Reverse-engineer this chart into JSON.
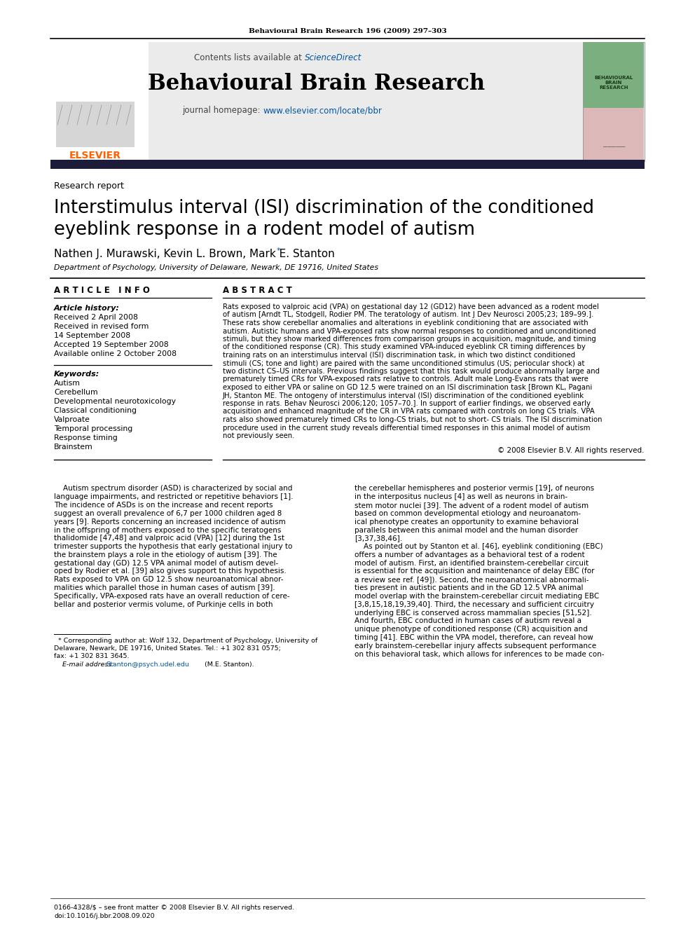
{
  "journal_ref": "Behavioural Brain Research 196 (2009) 297–303",
  "contents_text": "Contents lists available at ",
  "sciencedirect_text": "ScienceDirect",
  "journal_name": "Behavioural Brain Research",
  "homepage_text": "journal homepage: ",
  "homepage_url": "www.elsevier.com/locate/bbr",
  "section_label": "Research report",
  "article_title_line1": "Interstimulus interval (ISI) discrimination of the conditioned",
  "article_title_line2": "eyeblink response in a rodent model of autism",
  "authors": "Nathen J. Murawski, Kevin L. Brown, Mark E. Stanton",
  "affiliation": "Department of Psychology, University of Delaware, Newark, DE 19716, United States",
  "article_info_header": "A R T I C L E   I N F O",
  "abstract_header": "A B S T R A C T",
  "article_history_label": "Article history:",
  "history_lines": [
    "Received 2 April 2008",
    "Received in revised form",
    "14 September 2008",
    "Accepted 19 September 2008",
    "Available online 2 October 2008"
  ],
  "keywords_label": "Keywords:",
  "keywords": [
    "Autism",
    "Cerebellum",
    "Developmental neurotoxicology",
    "Classical conditioning",
    "Valproate",
    "Temporal processing",
    "Response timing",
    "Brainstem"
  ],
  "abstract_lines": [
    "Rats exposed to valproic acid (VPA) on gestational day 12 (GD12) have been advanced as a rodent model",
    "of autism [Arndt TL, Stodgell, Rodier PM. The teratology of autism. Int J Dev Neurosci 2005;23; 189–99.].",
    "These rats show cerebellar anomalies and alterations in eyeblink conditioning that are associated with",
    "autism. Autistic humans and VPA-exposed rats show normal responses to conditioned and unconditioned",
    "stimuli, but they show marked differences from comparison groups in acquisition, magnitude, and timing",
    "of the conditioned response (CR). This study examined VPA-induced eyeblink CR timing differences by",
    "training rats on an interstimulus interval (ISI) discrimination task, in which two distinct conditioned",
    "stimuli (CS; tone and light) are paired with the same unconditioned stimulus (US; periocular shock) at",
    "two distinct CS–US intervals. Previous findings suggest that this task would produce abnormally large and",
    "prematurely timed CRs for VPA-exposed rats relative to controls. Adult male Long-Evans rats that were",
    "exposed to either VPA or saline on GD 12.5 were trained on an ISI discrimination task [Brown KL, Pagani",
    "JH, Stanton ME. The ontogeny of interstimulus interval (ISI) discrimination of the conditioned eyeblink",
    "response in rats. Behav Neurosci 2006;120; 1057–70.]. In support of earlier findings, we observed early",
    "acquisition and enhanced magnitude of the CR in VPA rats compared with controls on long CS trials. VPA",
    "rats also showed prematurely timed CRs to long-CS trials, but not to short- CS trials. The ISI discrimination",
    "procedure used in the current study reveals differential timed responses in this animal model of autism",
    "not previously seen."
  ],
  "copyright": "© 2008 Elsevier B.V. All rights reserved.",
  "body_col1_lines": [
    "    Autism spectrum disorder (ASD) is characterized by social and",
    "language impairments, and restricted or repetitive behaviors [1].",
    "The incidence of ASDs is on the increase and recent reports",
    "suggest an overall prevalence of 6,7 per 1000 children aged 8",
    "years [9]. Reports concerning an increased incidence of autism",
    "in the offspring of mothers exposed to the specific teratogens",
    "thalidomide [47,48] and valproic acid (VPA) [12] during the 1st",
    "trimester supports the hypothesis that early gestational injury to",
    "the brainstem plays a role in the etiology of autism [39]. The",
    "gestational day (GD) 12.5 VPA animal model of autism devel-",
    "oped by Rodier et al. [39] also gives support to this hypothesis.",
    "Rats exposed to VPA on GD 12.5 show neuroanatomical abnor-",
    "malities which parallel those in human cases of autism [39].",
    "Specifically, VPA-exposed rats have an overall reduction of cere-",
    "bellar and posterior vermis volume, of Purkinje cells in both"
  ],
  "body_col2_lines": [
    "the cerebellar hemispheres and posterior vermis [19], of neurons",
    "in the interpositus nucleus [4] as well as neurons in brain-",
    "stem motor nuclei [39]. The advent of a rodent model of autism",
    "based on common developmental etiology and neuroanatom-",
    "ical phenotype creates an opportunity to examine behavioral",
    "parallels between this animal model and the human disorder",
    "[3,37,38,46].",
    "    As pointed out by Stanton et al. [46], eyeblink conditioning (EBC)",
    "offers a number of advantages as a behavioral test of a rodent",
    "model of autism. First, an identified brainstem-cerebellar circuit",
    "is essential for the acquisition and maintenance of delay EBC (for",
    "a review see ref. [49]). Second, the neuroanatomical abnormali-",
    "ties present in autistic patients and in the GD 12.5 VPA animal",
    "model overlap with the brainstem-cerebellar circuit mediating EBC",
    "[3,8,15,18,19,39,40]. Third, the necessary and sufficient circuitry",
    "underlying EBC is conserved across mammalian species [51,52].",
    "And fourth, EBC conducted in human cases of autism reveal a",
    "unique phenotype of conditioned response (CR) acquisition and",
    "timing [41]. EBC within the VPA model, therefore, can reveal how",
    "early brainstem-cerebellar injury affects subsequent performance",
    "on this behavioral task, which allows for inferences to be made con-"
  ],
  "footnote_line1": "  * Corresponding author at: Wolf 132, Department of Psychology, University of",
  "footnote_line2": "Delaware, Newark, DE 19716, United States. Tel.: +1 302 831 0575;",
  "footnote_line3": "fax: +1 302 831 3645.",
  "footnote_email_label": "    E-mail address: ",
  "footnote_email": "Stanton@psych.udel.edu",
  "footnote_email_end": " (M.E. Stanton).",
  "footer_issn": "0166-4328/$ – see front matter © 2008 Elsevier B.V. All rights reserved.",
  "footer_doi": "doi:10.1016/j.bbr.2008.09.020",
  "elsevier_color": "#FF6200",
  "sciencedirect_color": "#0055A5",
  "url_color": "#0055A5",
  "header_bg": "#EBEBEB",
  "dark_bar_color": "#1C1C3A",
  "cover_green": "#7BAF7F",
  "cover_pink": "#DDB8B8"
}
